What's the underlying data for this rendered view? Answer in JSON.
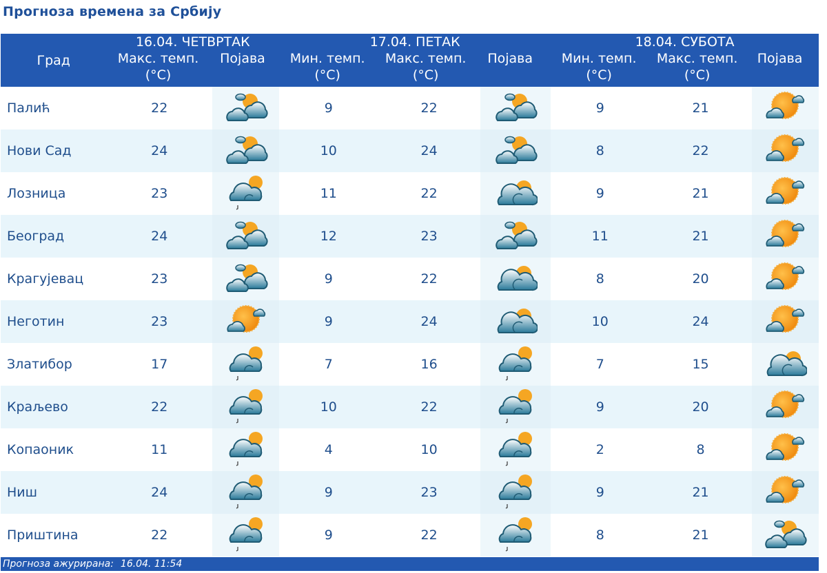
{
  "title": "Прогноза времена за Србију",
  "header": {
    "city_col": "Град",
    "days": [
      {
        "title": "16.04. ЧЕТВРТАК",
        "cols": [
          {
            "label": "Макс. темп.",
            "unit": "(°C)"
          },
          {
            "label": "Појава",
            "unit": ""
          }
        ]
      },
      {
        "title": "17.04. ПЕТАК",
        "cols": [
          {
            "label": "Мин. темп.",
            "unit": "(°C)"
          },
          {
            "label": "Макс. темп.",
            "unit": "(°C)"
          },
          {
            "label": "Појава",
            "unit": ""
          }
        ]
      },
      {
        "title": "18.04. СУБОТА",
        "cols": [
          {
            "label": "Мин. темп.",
            "unit": "(°C)"
          },
          {
            "label": "Макс. темп.",
            "unit": "(°C)"
          },
          {
            "label": "Појава",
            "unit": ""
          }
        ]
      }
    ]
  },
  "icons": {
    "partly-cloudy": "partly-cloudy-icon",
    "cloudy-rain": "cloudy-drizzle-icon",
    "mostly-cloudy": "mostly-cloudy-icon",
    "mostly-sunny": "mostly-sunny-icon"
  },
  "rows": [
    {
      "city": "Палић",
      "d1_max": "22",
      "d1_icon": "partly-cloudy",
      "d2_min": "9",
      "d2_max": "22",
      "d2_icon": "partly-cloudy",
      "d3_min": "9",
      "d3_max": "21",
      "d3_icon": "mostly-sunny"
    },
    {
      "city": "Нови Сад",
      "d1_max": "24",
      "d1_icon": "partly-cloudy",
      "d2_min": "10",
      "d2_max": "24",
      "d2_icon": "partly-cloudy",
      "d3_min": "8",
      "d3_max": "22",
      "d3_icon": "mostly-sunny"
    },
    {
      "city": "Лозница",
      "d1_max": "23",
      "d1_icon": "cloudy-rain",
      "d2_min": "11",
      "d2_max": "22",
      "d2_icon": "mostly-cloudy",
      "d3_min": "9",
      "d3_max": "21",
      "d3_icon": "mostly-sunny"
    },
    {
      "city": "Београд",
      "d1_max": "24",
      "d1_icon": "partly-cloudy",
      "d2_min": "12",
      "d2_max": "23",
      "d2_icon": "partly-cloudy",
      "d3_min": "11",
      "d3_max": "21",
      "d3_icon": "mostly-sunny"
    },
    {
      "city": "Крагујевац",
      "d1_max": "23",
      "d1_icon": "partly-cloudy",
      "d2_min": "9",
      "d2_max": "22",
      "d2_icon": "mostly-cloudy",
      "d3_min": "8",
      "d3_max": "20",
      "d3_icon": "mostly-sunny"
    },
    {
      "city": "Неготин",
      "d1_max": "23",
      "d1_icon": "mostly-sunny",
      "d2_min": "9",
      "d2_max": "24",
      "d2_icon": "mostly-cloudy",
      "d3_min": "10",
      "d3_max": "24",
      "d3_icon": "mostly-sunny"
    },
    {
      "city": "Златибор",
      "d1_max": "17",
      "d1_icon": "cloudy-rain",
      "d2_min": "7",
      "d2_max": "16",
      "d2_icon": "cloudy-rain",
      "d3_min": "7",
      "d3_max": "15",
      "d3_icon": "mostly-cloudy"
    },
    {
      "city": "Краљево",
      "d1_max": "22",
      "d1_icon": "cloudy-rain",
      "d2_min": "10",
      "d2_max": "22",
      "d2_icon": "cloudy-rain",
      "d3_min": "9",
      "d3_max": "20",
      "d3_icon": "mostly-sunny"
    },
    {
      "city": "Копаоник",
      "d1_max": "11",
      "d1_icon": "cloudy-rain",
      "d2_min": "4",
      "d2_max": "10",
      "d2_icon": "cloudy-rain",
      "d3_min": "2",
      "d3_max": "8",
      "d3_icon": "mostly-sunny"
    },
    {
      "city": "Ниш",
      "d1_max": "24",
      "d1_icon": "cloudy-rain",
      "d2_min": "9",
      "d2_max": "23",
      "d2_icon": "cloudy-rain",
      "d3_min": "9",
      "d3_max": "21",
      "d3_icon": "mostly-sunny"
    },
    {
      "city": "Приштина",
      "d1_max": "22",
      "d1_icon": "cloudy-rain",
      "d2_min": "9",
      "d2_max": "22",
      "d2_icon": "cloudy-rain",
      "d3_min": "8",
      "d3_max": "21",
      "d3_icon": "partly-cloudy"
    }
  ],
  "footer": {
    "label": "Прогноза ажурирана:",
    "value": "16.04. 11:54"
  },
  "colors": {
    "header_bg": "#2359b1",
    "title": "#1f5099",
    "text": "#1f4e8c",
    "row_alt": "#e8f5fb",
    "sun": "#f5a623",
    "cloud": "#2a7a9a"
  }
}
